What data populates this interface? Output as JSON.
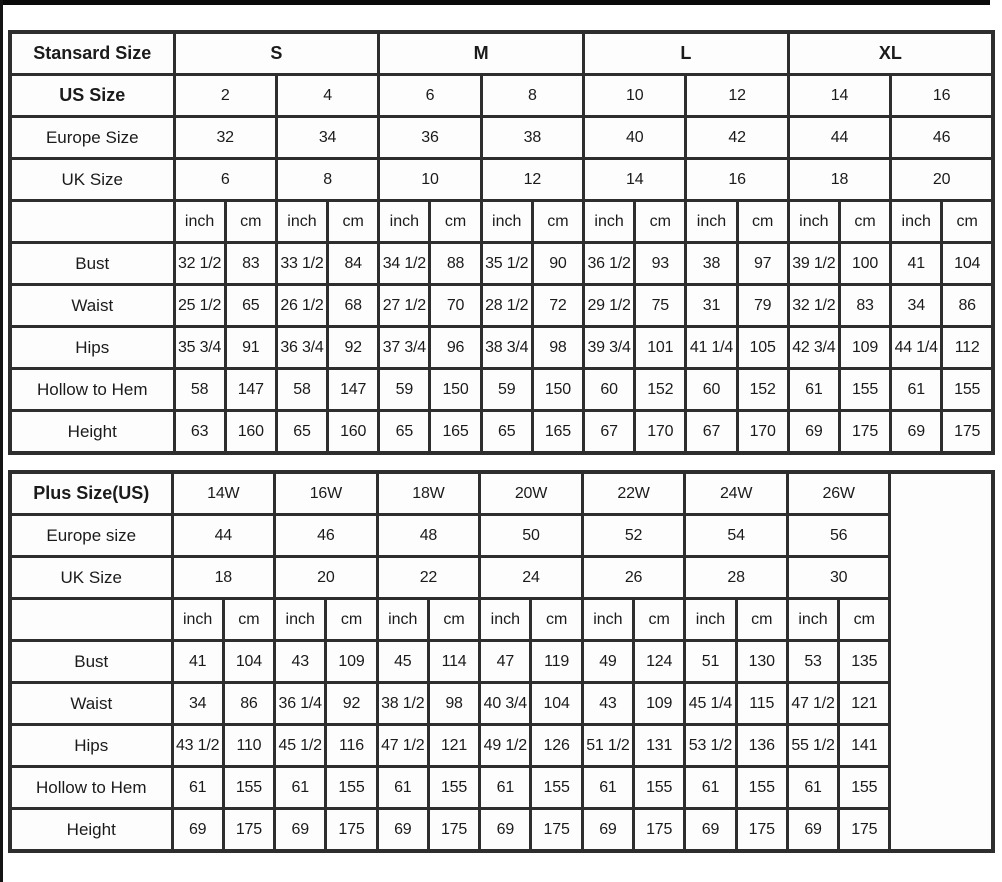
{
  "colors": {
    "border": "#2e2e2e",
    "text": "#1b1b1b",
    "background": "#ffffff",
    "cell_background": "#fdfdfd"
  },
  "tables": [
    {
      "id": "standard-size-table",
      "dataCols": 16,
      "labelColWidth": 164,
      "trailingEmptyCol": false,
      "trailingColWidth": 0,
      "rows": [
        {
          "label": "Stansard Size",
          "labelBold": true,
          "cellsBold": true,
          "span": 4,
          "cells": [
            "S",
            "M",
            "L",
            "XL"
          ]
        },
        {
          "label": "US Size",
          "labelBold": true,
          "cellsBold": false,
          "span": 2,
          "cells": [
            "2",
            "4",
            "6",
            "8",
            "10",
            "12",
            "14",
            "16"
          ]
        },
        {
          "label": "Europe Size",
          "labelBold": false,
          "cellsBold": false,
          "span": 2,
          "cells": [
            "32",
            "34",
            "36",
            "38",
            "40",
            "42",
            "44",
            "46"
          ]
        },
        {
          "label": "UK Size",
          "labelBold": false,
          "cellsBold": false,
          "span": 2,
          "cells": [
            "6",
            "8",
            "10",
            "12",
            "14",
            "16",
            "18",
            "20"
          ]
        },
        {
          "label": "",
          "labelBold": false,
          "cellsBold": false,
          "span": 1,
          "unitRow": true,
          "cells": [
            "inch",
            "cm",
            "inch",
            "cm",
            "inch",
            "cm",
            "inch",
            "cm",
            "inch",
            "cm",
            "inch",
            "cm",
            "inch",
            "cm",
            "inch",
            "cm"
          ]
        },
        {
          "label": "Bust",
          "labelBold": false,
          "cellsBold": false,
          "span": 1,
          "cells": [
            "32 1/2",
            "83",
            "33 1/2",
            "84",
            "34 1/2",
            "88",
            "35 1/2",
            "90",
            "36 1/2",
            "93",
            "38",
            "97",
            "39 1/2",
            "100",
            "41",
            "104"
          ]
        },
        {
          "label": "Waist",
          "labelBold": false,
          "cellsBold": false,
          "span": 1,
          "cells": [
            "25 1/2",
            "65",
            "26 1/2",
            "68",
            "27 1/2",
            "70",
            "28 1/2",
            "72",
            "29 1/2",
            "75",
            "31",
            "79",
            "32 1/2",
            "83",
            "34",
            "86"
          ]
        },
        {
          "label": "Hips",
          "labelBold": false,
          "cellsBold": false,
          "span": 1,
          "cells": [
            "35 3/4",
            "91",
            "36 3/4",
            "92",
            "37 3/4",
            "96",
            "38 3/4",
            "98",
            "39 3/4",
            "101",
            "41 1/4",
            "105",
            "42 3/4",
            "109",
            "44 1/4",
            "112"
          ]
        },
        {
          "label": "Hollow to Hem",
          "labelBold": false,
          "cellsBold": false,
          "span": 1,
          "cells": [
            "58",
            "147",
            "58",
            "147",
            "59",
            "150",
            "59",
            "150",
            "60",
            "152",
            "60",
            "152",
            "61",
            "155",
            "61",
            "155"
          ]
        },
        {
          "label": "Height",
          "labelBold": false,
          "cellsBold": false,
          "span": 1,
          "cells": [
            "63",
            "160",
            "65",
            "160",
            "65",
            "165",
            "65",
            "165",
            "67",
            "170",
            "67",
            "170",
            "69",
            "175",
            "69",
            "175"
          ]
        }
      ]
    },
    {
      "id": "plus-size-table",
      "dataCols": 14,
      "labelColWidth": 162,
      "trailingEmptyCol": true,
      "trailingColWidth": 103,
      "rows": [
        {
          "label": "Plus Size(US)",
          "labelBold": true,
          "cellsBold": false,
          "span": 2,
          "cells": [
            "14W",
            "16W",
            "18W",
            "20W",
            "22W",
            "24W",
            "26W"
          ]
        },
        {
          "label": "Europe size",
          "labelBold": false,
          "cellsBold": false,
          "span": 2,
          "cells": [
            "44",
            "46",
            "48",
            "50",
            "52",
            "54",
            "56"
          ]
        },
        {
          "label": "UK Size",
          "labelBold": false,
          "cellsBold": false,
          "span": 2,
          "cells": [
            "18",
            "20",
            "22",
            "24",
            "26",
            "28",
            "30"
          ]
        },
        {
          "label": "",
          "labelBold": false,
          "cellsBold": false,
          "span": 1,
          "unitRow": true,
          "cells": [
            "inch",
            "cm",
            "inch",
            "cm",
            "inch",
            "cm",
            "inch",
            "cm",
            "inch",
            "cm",
            "inch",
            "cm",
            "inch",
            "cm"
          ]
        },
        {
          "label": "Bust",
          "labelBold": false,
          "cellsBold": false,
          "span": 1,
          "cells": [
            "41",
            "104",
            "43",
            "109",
            "45",
            "114",
            "47",
            "119",
            "49",
            "124",
            "51",
            "130",
            "53",
            "135"
          ]
        },
        {
          "label": "Waist",
          "labelBold": false,
          "cellsBold": false,
          "span": 1,
          "cells": [
            "34",
            "86",
            "36 1/4",
            "92",
            "38 1/2",
            "98",
            "40 3/4",
            "104",
            "43",
            "109",
            "45 1/4",
            "115",
            "47 1/2",
            "121"
          ]
        },
        {
          "label": "Hips",
          "labelBold": false,
          "cellsBold": false,
          "span": 1,
          "cells": [
            "43 1/2",
            "110",
            "45 1/2",
            "116",
            "47 1/2",
            "121",
            "49 1/2",
            "126",
            "51 1/2",
            "131",
            "53 1/2",
            "136",
            "55 1/2",
            "141"
          ]
        },
        {
          "label": "Hollow to Hem",
          "labelBold": false,
          "cellsBold": false,
          "span": 1,
          "cells": [
            "61",
            "155",
            "61",
            "155",
            "61",
            "155",
            "61",
            "155",
            "61",
            "155",
            "61",
            "155",
            "61",
            "155"
          ]
        },
        {
          "label": "Height",
          "labelBold": false,
          "cellsBold": false,
          "span": 1,
          "cells": [
            "69",
            "175",
            "69",
            "175",
            "69",
            "175",
            "69",
            "175",
            "69",
            "175",
            "69",
            "175",
            "69",
            "175"
          ]
        }
      ]
    }
  ]
}
